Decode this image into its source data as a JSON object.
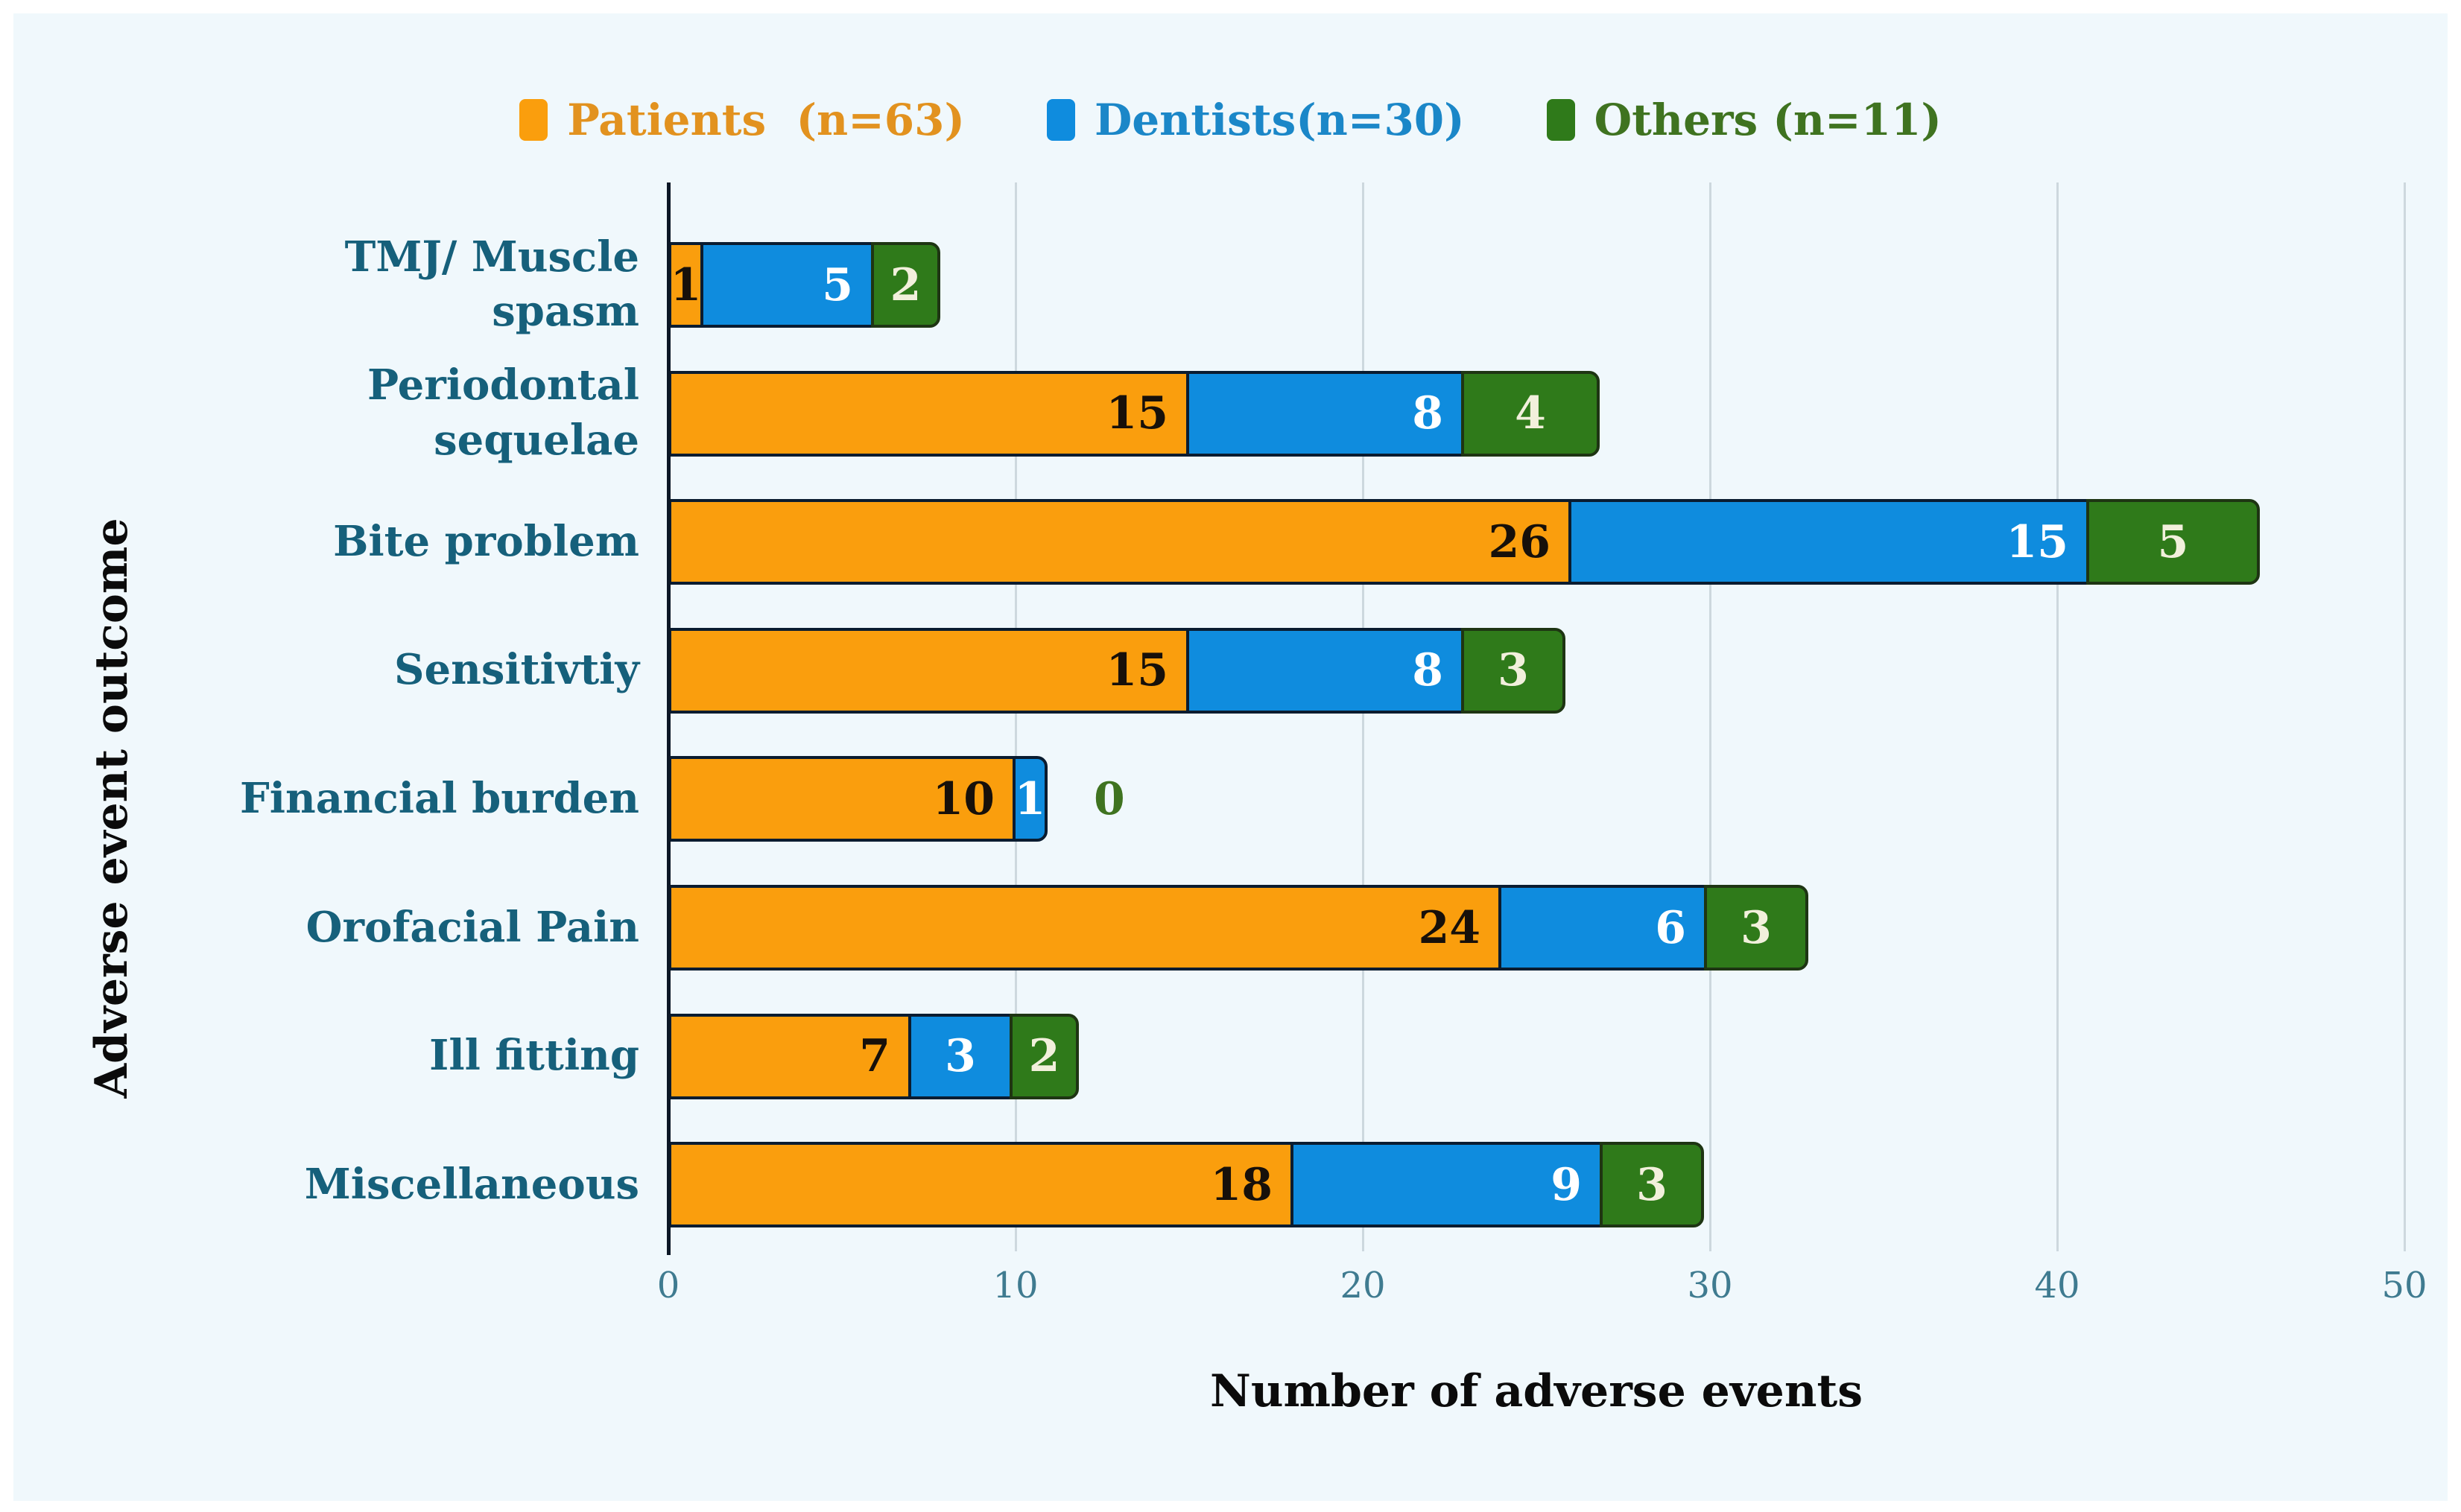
{
  "figure": {
    "background": "#f0f8fc",
    "xlabel": "Number of adverse events",
    "ylabel": "Adverse event outcome"
  },
  "legend": {
    "items": [
      {
        "label": "Patients  (n=63)",
        "swatch_color": "#fa9e0d",
        "text_color": "#e2921f"
      },
      {
        "label": "Dentists(n=30)",
        "swatch_color": "#0f8cde",
        "text_color": "#1b87c8"
      },
      {
        "label": "Others (n=11)",
        "swatch_color": "#2f7a1a",
        "text_color": "#3f7320"
      }
    ]
  },
  "chart_data": {
    "type": "bar",
    "orientation": "horizontal",
    "stacked": true,
    "title": "",
    "xlabel": "Number of adverse events",
    "ylabel": "Adverse event outcome",
    "xlim": [
      0,
      50
    ],
    "x_ticks": [
      0,
      10,
      20,
      30,
      40,
      50
    ],
    "grid": "vertical-light",
    "legend_position": "top-center",
    "categories": [
      "TMJ/ Muscle spasm",
      "Periodontal sequelae",
      "Bite problem",
      "Sensitivtiy",
      "Financial burden",
      "Orofacial Pain",
      "Ill fitting",
      "Miscellaneous"
    ],
    "category_lines": [
      [
        "TMJ/ Muscle",
        "spasm"
      ],
      [
        "Periodontal",
        "sequelae"
      ],
      [
        "Bite problem"
      ],
      [
        "Sensitivtiy"
      ],
      [
        "Financial burden"
      ],
      [
        "Orofacial Pain"
      ],
      [
        "Ill fitting"
      ],
      [
        "Miscellaneous"
      ]
    ],
    "series": [
      {
        "name": "Patients (n=63)",
        "color": "#fa9e0d",
        "label_color": "#17100a",
        "border_color": "#0a1c30",
        "values": [
          1,
          15,
          26,
          15,
          10,
          24,
          7,
          18
        ]
      },
      {
        "name": "Dentists (n=30)",
        "color": "#0f8cde",
        "label_color": "#ffffff",
        "border_color": "#0a1c30",
        "values": [
          5,
          8,
          15,
          8,
          1,
          6,
          3,
          9
        ]
      },
      {
        "name": "Others (n=11)",
        "color": "#2f7a1a",
        "label_color": "#f2f0dc",
        "border_color": "#1e3513",
        "values": [
          2,
          4,
          5,
          3,
          0,
          3,
          2,
          3
        ]
      }
    ],
    "style_colors": {
      "category_label": "#16607b",
      "tick_label": "#3f7b90",
      "gridline": "#cdd8de",
      "axis_line": "#0c1726",
      "zero_outside_label": "#3f7320"
    }
  }
}
